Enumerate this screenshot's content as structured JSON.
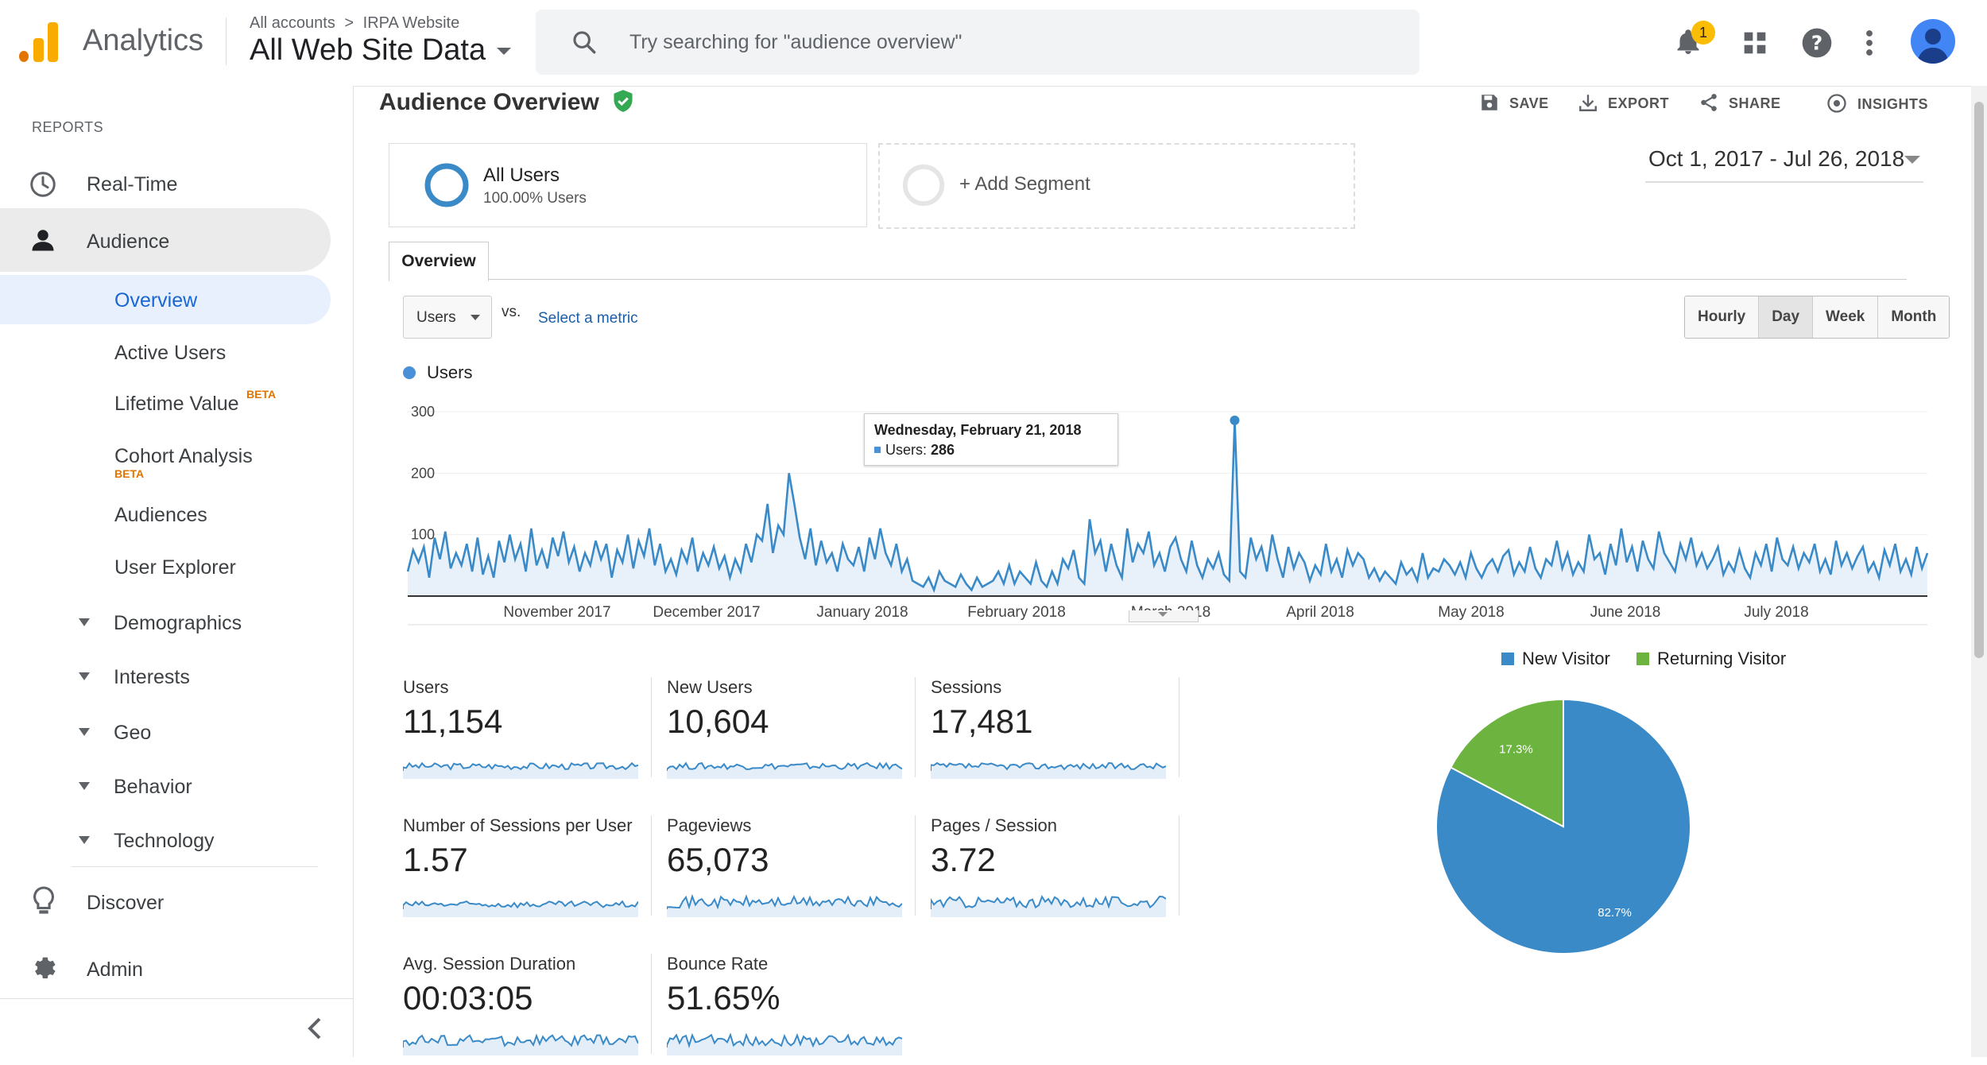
{
  "header": {
    "app_name": "Analytics",
    "breadcrumb_account": "All accounts",
    "breadcrumb_sep": ">",
    "breadcrumb_property": "IRPA Website",
    "view_name": "All Web Site Data",
    "search_placeholder": "Try searching for \"audience overview\"",
    "notification_count": "1",
    "icons": [
      "bell-icon",
      "apps-grid-icon",
      "help-icon",
      "more-vert-icon",
      "avatar"
    ],
    "brand_colors": {
      "logo_orange": "#f9ab00",
      "logo_dark_orange": "#e37400"
    }
  },
  "sidebar": {
    "section_label": "REPORTS",
    "items": [
      {
        "label": "Real-Time",
        "icon": "clock-icon"
      },
      {
        "label": "Audience",
        "icon": "person-icon"
      },
      {
        "label": "Overview"
      },
      {
        "label": "Active Users"
      },
      {
        "label": "Lifetime Value",
        "badge": "BETA"
      },
      {
        "label": "Cohort Analysis",
        "badge": "BETA"
      },
      {
        "label": "Audiences"
      },
      {
        "label": "User Explorer"
      },
      {
        "label": "Demographics"
      },
      {
        "label": "Interests"
      },
      {
        "label": "Geo"
      },
      {
        "label": "Behavior"
      },
      {
        "label": "Technology"
      },
      {
        "label": "Discover",
        "icon": "lightbulb-icon"
      },
      {
        "label": "Admin",
        "icon": "gear-icon"
      }
    ],
    "collapse_icon": "chevron-left-icon"
  },
  "report": {
    "title": "Audience Overview",
    "verified_icon": "shield-check-icon",
    "actions": [
      {
        "label": "SAVE",
        "icon": "save-icon"
      },
      {
        "label": "EXPORT",
        "icon": "export-icon"
      },
      {
        "label": "SHARE",
        "icon": "share-icon"
      },
      {
        "label": "INSIGHTS",
        "icon": "insights-icon"
      }
    ],
    "segment": {
      "name": "All Users",
      "sub": "100.00% Users"
    },
    "add_segment": "+ Add Segment",
    "date_range": "Oct 1, 2017 - Jul 26, 2018",
    "tab": "Overview",
    "metric_select": "Users",
    "vs_label": "vs.",
    "select_metric": "Select a metric",
    "granularity": [
      "Hourly",
      "Day",
      "Week",
      "Month"
    ],
    "granularity_selected": "Day",
    "tooltip": {
      "date": "Wednesday, February 21, 2018",
      "label": "Users:",
      "value": "286"
    }
  },
  "chart_data": [
    {
      "type": "line",
      "series": [
        {
          "name": "Users",
          "color": "#4a90d9",
          "values": [
            40,
            75,
            55,
            80,
            30,
            95,
            60,
            105,
            45,
            70,
            50,
            85,
            40,
            95,
            35,
            65,
            30,
            90,
            55,
            100,
            60,
            85,
            40,
            110,
            50,
            75,
            45,
            95,
            65,
            105,
            55,
            80,
            40,
            70,
            50,
            90,
            60,
            85,
            30,
            75,
            55,
            100,
            45,
            90,
            65,
            110,
            50,
            85,
            40,
            60,
            35,
            75,
            55,
            95,
            40,
            70,
            50,
            80,
            45,
            65,
            30,
            60,
            40,
            85,
            55,
            100,
            90,
            150,
            70,
            115,
            100,
            200,
            150,
            95,
            60,
            110,
            50,
            90,
            55,
            70,
            40,
            85,
            60,
            50,
            80,
            40,
            95,
            60,
            110,
            70,
            50,
            85,
            40,
            60,
            25,
            20,
            15,
            30,
            10,
            40,
            25,
            20,
            15,
            35,
            20,
            10,
            30,
            15,
            20,
            25,
            40,
            20,
            50,
            20,
            40,
            30,
            20,
            55,
            25,
            15,
            40,
            20,
            60,
            45,
            75,
            30,
            20,
            125,
            70,
            90,
            40,
            85,
            50,
            30,
            110,
            55,
            85,
            70,
            105,
            50,
            70,
            40,
            80,
            95,
            60,
            40,
            90,
            50,
            30,
            60,
            45,
            70,
            35,
            25,
            286,
            40,
            30,
            95,
            60,
            80,
            40,
            100,
            60,
            30,
            80,
            45,
            70,
            55,
            25,
            50,
            35,
            85,
            40,
            60,
            30,
            75,
            50,
            70,
            60,
            30,
            45,
            25,
            40,
            30,
            20,
            55,
            35,
            45,
            25,
            70,
            30,
            45,
            40,
            60,
            50,
            35,
            55,
            30,
            70,
            45,
            30,
            50,
            60,
            40,
            65,
            75,
            35,
            55,
            40,
            80,
            45,
            30,
            60,
            50,
            90,
            45,
            70,
            35,
            55,
            40,
            100,
            60,
            70,
            35,
            85,
            50,
            110,
            55,
            80,
            40,
            90,
            60,
            45,
            105,
            70,
            55,
            40,
            85,
            60,
            95,
            50,
            70,
            45,
            60,
            80,
            35,
            55,
            40,
            75,
            45,
            30,
            70,
            50,
            85,
            40,
            95,
            60,
            50,
            80,
            45,
            70,
            55,
            85,
            40,
            60,
            35,
            90,
            50,
            70,
            45,
            65,
            80,
            40,
            55,
            30,
            75,
            50,
            85,
            40,
            60,
            35,
            80,
            45,
            70
          ]
        }
      ],
      "x_tick_labels": [
        "November 2017",
        "December 2017",
        "January 2018",
        "February 2018",
        "March 2018",
        "April 2018",
        "May 2018",
        "June 2018",
        "July 2018"
      ],
      "y_tick_labels": [
        "100",
        "200",
        "300"
      ],
      "ylim": [
        0,
        300
      ],
      "highlight": {
        "x": "Wednesday, February 21, 2018",
        "y": 286
      }
    },
    {
      "type": "pie",
      "slices": [
        {
          "name": "New Visitor",
          "value": 82.7,
          "label": "82.7%",
          "color": "#3a8ac8"
        },
        {
          "name": "Returning Visitor",
          "value": 17.3,
          "label": "17.3%",
          "color": "#6cb33f"
        }
      ],
      "legend_placement": "top"
    }
  ],
  "metrics": [
    {
      "label": "Users",
      "value": "11,154"
    },
    {
      "label": "New Users",
      "value": "10,604"
    },
    {
      "label": "Sessions",
      "value": "17,481"
    },
    {
      "label": "Number of Sessions per User",
      "value": "1.57"
    },
    {
      "label": "Pageviews",
      "value": "65,073"
    },
    {
      "label": "Pages / Session",
      "value": "3.72"
    },
    {
      "label": "Avg. Session Duration",
      "value": "00:03:05"
    },
    {
      "label": "Bounce Rate",
      "value": "51.65%"
    }
  ]
}
